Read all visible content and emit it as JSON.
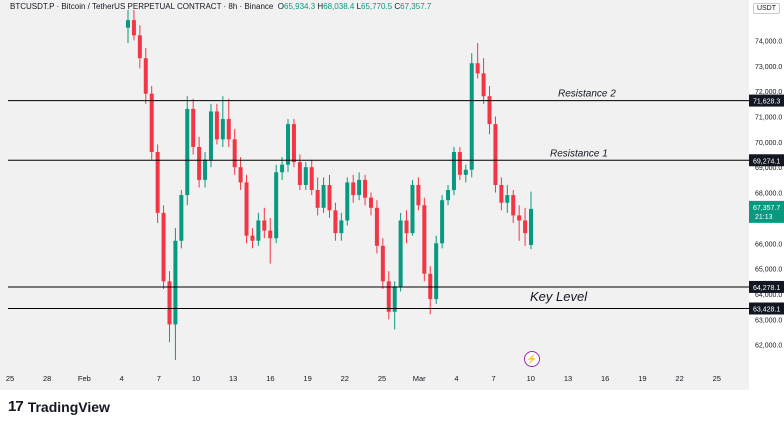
{
  "header": {
    "symbol": "BTCUSDT.P · Bitcoin / TetherUS PERPETUAL CONTRACT · 8h · Binance",
    "o_label": "O",
    "o_value": "65,934.3",
    "h_label": "H",
    "h_value": "68,038.4",
    "l_label": "L",
    "l_value": "65,770.5",
    "c_label": "C",
    "c_value": "67,357.7"
  },
  "currency_badge": "USDT",
  "footer_brand": "TradingView",
  "footer_logo": "17",
  "colors": {
    "up": "#089981",
    "down": "#f23645",
    "line": "#000000",
    "price_badge": "#089981",
    "event_icon": "#9c27b0"
  },
  "chart_data": {
    "type": "candlestick",
    "y_ticks": [
      "74,000.0",
      "73,000.0",
      "72,000.0",
      "71,000.0",
      "70,000.0",
      "69,000.0",
      "68,000.0",
      "67,000.0",
      "66,000.0",
      "65,000.0",
      "64,000.0",
      "63,000.0",
      "62,000.0"
    ],
    "y_tick_values": [
      74000,
      73000,
      72000,
      71000,
      70000,
      69000,
      68000,
      67000,
      66000,
      65000,
      64000,
      63000,
      62000
    ],
    "ylim": [
      61200,
      75200
    ],
    "x_ticks": [
      "25",
      "28",
      "Feb",
      "4",
      "7",
      "10",
      "13",
      "16",
      "19",
      "22",
      "25",
      "Mar",
      "4",
      "7",
      "10",
      "13",
      "16",
      "19",
      "22",
      "25"
    ],
    "levels": [
      {
        "label": "Resistance 2",
        "value": 71628.3,
        "badge": "71,628.3"
      },
      {
        "label": "Resistance 1",
        "value": 69274.1,
        "badge": "69,274.1"
      },
      {
        "label": "Key Level",
        "value": 64278.1,
        "badge": "64,278.1"
      },
      {
        "label": "",
        "value": 63428.1,
        "badge": "63,428.1"
      }
    ],
    "current_price": {
      "value": 67357.7,
      "label": "67,357.7",
      "countdown": "21:13"
    },
    "candles": [
      [
        74500,
        75200,
        73900,
        74800
      ],
      [
        74800,
        75200,
        74000,
        74200
      ],
      [
        74200,
        74600,
        72900,
        73300
      ],
      [
        73300,
        73700,
        71500,
        71900
      ],
      [
        71900,
        72200,
        69300,
        69600
      ],
      [
        69600,
        69900,
        66800,
        67200
      ],
      [
        67200,
        67500,
        64200,
        64500
      ],
      [
        64500,
        64900,
        62100,
        62800
      ],
      [
        62800,
        66600,
        61400,
        66100
      ],
      [
        66100,
        68100,
        65800,
        67900
      ],
      [
        67900,
        71800,
        67500,
        71300
      ],
      [
        71300,
        71700,
        69500,
        69800
      ],
      [
        69800,
        70200,
        68200,
        68500
      ],
      [
        68500,
        69600,
        68200,
        69300
      ],
      [
        69300,
        71500,
        69000,
        71200
      ],
      [
        71200,
        71500,
        69900,
        70100
      ],
      [
        70100,
        71800,
        69800,
        70900
      ],
      [
        70900,
        71700,
        69800,
        70100
      ],
      [
        70100,
        70500,
        68700,
        69000
      ],
      [
        69000,
        69400,
        68100,
        68400
      ],
      [
        68400,
        68700,
        66000,
        66300
      ],
      [
        66300,
        66600,
        65800,
        66100
      ],
      [
        66100,
        67200,
        65900,
        66900
      ],
      [
        66900,
        67400,
        66200,
        66500
      ],
      [
        66500,
        67000,
        65200,
        66200
      ],
      [
        66200,
        69100,
        66000,
        68800
      ],
      [
        68800,
        69400,
        68500,
        69100
      ],
      [
        69100,
        70900,
        68800,
        70700
      ],
      [
        70700,
        70900,
        69000,
        69200
      ],
      [
        69200,
        69500,
        68100,
        68300
      ],
      [
        68300,
        69200,
        68100,
        69000
      ],
      [
        69000,
        69300,
        67900,
        68100
      ],
      [
        68100,
        68600,
        67100,
        67400
      ],
      [
        67400,
        68600,
        67200,
        68300
      ],
      [
        68300,
        68700,
        67000,
        67300
      ],
      [
        67300,
        67600,
        66100,
        66400
      ],
      [
        66400,
        67200,
        66100,
        66900
      ],
      [
        66900,
        68600,
        66700,
        68400
      ],
      [
        68400,
        68700,
        67600,
        67900
      ],
      [
        67900,
        68800,
        67700,
        68500
      ],
      [
        68500,
        68700,
        67500,
        67800
      ],
      [
        67800,
        68000,
        67100,
        67400
      ],
      [
        67400,
        67700,
        65600,
        65900
      ],
      [
        65900,
        66200,
        64200,
        64500
      ],
      [
        64500,
        64900,
        63000,
        63300
      ],
      [
        63300,
        64500,
        62600,
        64300
      ],
      [
        64300,
        67200,
        64100,
        66900
      ],
      [
        66900,
        67300,
        66000,
        66400
      ],
      [
        66400,
        68500,
        66300,
        68300
      ],
      [
        68300,
        68600,
        67300,
        67500
      ],
      [
        67500,
        67800,
        64500,
        64800
      ],
      [
        64800,
        65100,
        63200,
        63800
      ],
      [
        63800,
        66300,
        63600,
        66000
      ],
      [
        66000,
        67900,
        65800,
        67700
      ],
      [
        67700,
        68300,
        67500,
        68100
      ],
      [
        68100,
        69800,
        67900,
        69600
      ],
      [
        69600,
        69800,
        68500,
        68700
      ],
      [
        68700,
        69100,
        68400,
        68900
      ],
      [
        68900,
        73500,
        68600,
        73100
      ],
      [
        73100,
        73900,
        72500,
        72700
      ],
      [
        72700,
        73300,
        71500,
        71800
      ],
      [
        71800,
        72200,
        70300,
        70700
      ],
      [
        70700,
        71000,
        68000,
        68300
      ],
      [
        68300,
        68600,
        67300,
        67600
      ],
      [
        67600,
        68300,
        67200,
        67900
      ],
      [
        67900,
        68100,
        66800,
        67100
      ],
      [
        67100,
        67500,
        66100,
        66900
      ],
      [
        66900,
        67400,
        65900,
        66400
      ],
      [
        65934.3,
        68038.4,
        65770.5,
        67357.7
      ]
    ]
  }
}
